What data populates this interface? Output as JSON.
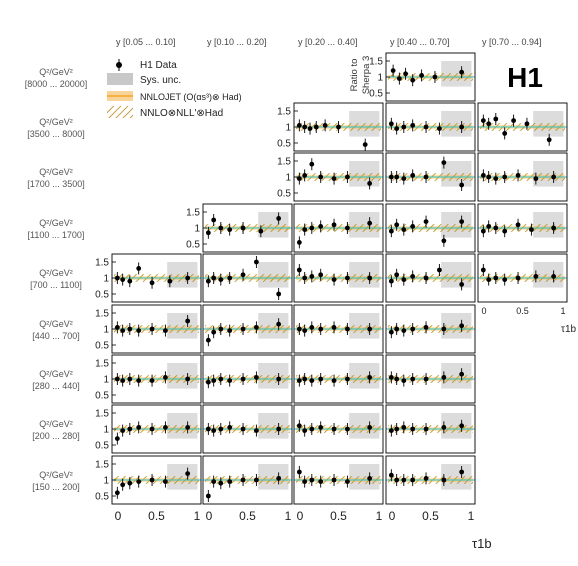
{
  "chart_data": {
    "type": "scatter",
    "logo": "H1",
    "ratio_label": [
      "Ratio to",
      "Sherpa 3"
    ],
    "x_axis_label": "τ1b",
    "x_ticks": [
      "0",
      "0.5",
      "1"
    ],
    "y_ticks": [
      "0.5",
      "1",
      "1.5"
    ],
    "xlim": [
      0,
      1
    ],
    "ylim": [
      0.25,
      1.75
    ],
    "legend": [
      {
        "name": "H1 Data",
        "marker": "point",
        "color": "#000000"
      },
      {
        "name": "Sys. unc.",
        "marker": "box",
        "color": "#c8c8c8"
      },
      {
        "name": "NNLOJET (O(αs³)⊗ Had)",
        "marker": "band",
        "color": "#f5a623"
      },
      {
        "name": "NNLO⊗NLL'⊗Had",
        "marker": "hatch",
        "color": "#b8860b"
      }
    ],
    "columns": [
      "y  [0.05 ... 0.10]",
      "y  [0.10 ... 0.20]",
      "y  [0.20 ... 0.40]",
      "y  [0.40 ... 0.70]",
      "y  [0.70 ... 0.94]"
    ],
    "rows": [
      {
        "q2": "Q²/GeV²",
        "range": "[8000 ... 20000]",
        "cols": [
          3
        ]
      },
      {
        "q2": "Q²/GeV²",
        "range": "[3500 ... 8000]",
        "cols": [
          2,
          3,
          4
        ]
      },
      {
        "q2": "Q²/GeV²",
        "range": "[1700 ... 3500]",
        "cols": [
          2,
          3,
          4
        ]
      },
      {
        "q2": "Q²/GeV²",
        "range": "[1100 ... 1700]",
        "cols": [
          1,
          2,
          3,
          4
        ]
      },
      {
        "q2": "Q²/GeV²",
        "range": "[700 ... 1100]",
        "cols": [
          0,
          1,
          2,
          3,
          4
        ]
      },
      {
        "q2": "Q²/GeV²",
        "range": "[440 ... 700]",
        "cols": [
          0,
          1,
          2,
          3
        ]
      },
      {
        "q2": "Q²/GeV²",
        "range": "[280 ... 440]",
        "cols": [
          0,
          1,
          2,
          3
        ]
      },
      {
        "q2": "Q²/GeV²",
        "range": "[200 ... 280]",
        "cols": [
          0,
          1,
          2,
          3
        ]
      },
      {
        "q2": "Q²/GeV²",
        "range": "[150 ... 200]",
        "cols": [
          0,
          1,
          2,
          3
        ]
      }
    ],
    "panel_points": {
      "0-3": [
        [
          0.08,
          1.2
        ],
        [
          0.15,
          0.95
        ],
        [
          0.22,
          1.1
        ],
        [
          0.3,
          0.9
        ],
        [
          0.4,
          1.05
        ],
        [
          0.55,
          1.0
        ],
        [
          0.85,
          1.15
        ]
      ],
      "1-2": [
        [
          0.06,
          1.05
        ],
        [
          0.12,
          1.0
        ],
        [
          0.18,
          0.95
        ],
        [
          0.25,
          1.0
        ],
        [
          0.35,
          1.05
        ],
        [
          0.5,
          1.0
        ],
        [
          0.8,
          0.45
        ]
      ],
      "1-3": [
        [
          0.06,
          1.1
        ],
        [
          0.12,
          0.95
        ],
        [
          0.2,
          1.0
        ],
        [
          0.3,
          1.05
        ],
        [
          0.45,
          1.0
        ],
        [
          0.6,
          0.95
        ],
        [
          0.85,
          1.0
        ]
      ],
      "1-4": [
        [
          0.06,
          1.2
        ],
        [
          0.12,
          1.1
        ],
        [
          0.2,
          1.25
        ],
        [
          0.3,
          0.8
        ],
        [
          0.4,
          1.2
        ],
        [
          0.55,
          1.1
        ],
        [
          0.8,
          0.6
        ]
      ],
      "2-2": [
        [
          0.06,
          0.95
        ],
        [
          0.12,
          1.05
        ],
        [
          0.2,
          1.4
        ],
        [
          0.3,
          1.0
        ],
        [
          0.45,
          0.95
        ],
        [
          0.6,
          1.0
        ],
        [
          0.85,
          0.8
        ]
      ],
      "2-3": [
        [
          0.06,
          1.0
        ],
        [
          0.12,
          1.0
        ],
        [
          0.2,
          0.95
        ],
        [
          0.3,
          1.05
        ],
        [
          0.45,
          1.0
        ],
        [
          0.65,
          1.45
        ],
        [
          0.85,
          0.75
        ]
      ],
      "2-4": [
        [
          0.06,
          1.05
        ],
        [
          0.12,
          1.0
        ],
        [
          0.2,
          0.95
        ],
        [
          0.3,
          1.0
        ],
        [
          0.45,
          1.05
        ],
        [
          0.65,
          0.95
        ],
        [
          0.85,
          1.0
        ]
      ],
      "3-1": [
        [
          0.06,
          0.85
        ],
        [
          0.12,
          1.25
        ],
        [
          0.2,
          1.0
        ],
        [
          0.3,
          0.95
        ],
        [
          0.45,
          1.0
        ],
        [
          0.65,
          0.9
        ],
        [
          0.85,
          1.3
        ]
      ],
      "3-2": [
        [
          0.06,
          0.55
        ],
        [
          0.12,
          0.95
        ],
        [
          0.2,
          1.0
        ],
        [
          0.3,
          1.05
        ],
        [
          0.45,
          1.1
        ],
        [
          0.6,
          1.0
        ],
        [
          0.85,
          1.15
        ]
      ],
      "3-3": [
        [
          0.06,
          0.9
        ],
        [
          0.12,
          1.1
        ],
        [
          0.2,
          0.95
        ],
        [
          0.3,
          1.05
        ],
        [
          0.45,
          1.2
        ],
        [
          0.65,
          0.6
        ],
        [
          0.85,
          1.2
        ]
      ],
      "3-4": [
        [
          0.06,
          0.9
        ],
        [
          0.12,
          1.05
        ],
        [
          0.2,
          1.0
        ],
        [
          0.3,
          0.9
        ],
        [
          0.45,
          1.1
        ],
        [
          0.6,
          0.95
        ],
        [
          0.85,
          1.0
        ]
      ],
      "4-0": [
        [
          0.06,
          1.0
        ],
        [
          0.12,
          0.95
        ],
        [
          0.2,
          0.9
        ],
        [
          0.3,
          1.3
        ],
        [
          0.45,
          0.85
        ],
        [
          0.65,
          0.9
        ],
        [
          0.85,
          1.0
        ]
      ],
      "4-1": [
        [
          0.06,
          0.9
        ],
        [
          0.12,
          1.0
        ],
        [
          0.2,
          0.95
        ],
        [
          0.3,
          1.0
        ],
        [
          0.45,
          1.1
        ],
        [
          0.6,
          1.5
        ],
        [
          0.85,
          0.5
        ]
      ],
      "4-2": [
        [
          0.06,
          1.25
        ],
        [
          0.12,
          1.0
        ],
        [
          0.2,
          1.05
        ],
        [
          0.3,
          1.1
        ],
        [
          0.45,
          0.95
        ],
        [
          0.6,
          1.0
        ],
        [
          0.85,
          1.0
        ]
      ],
      "4-3": [
        [
          0.06,
          0.9
        ],
        [
          0.12,
          1.1
        ],
        [
          0.2,
          0.95
        ],
        [
          0.3,
          1.05
        ],
        [
          0.45,
          1.0
        ],
        [
          0.6,
          1.25
        ],
        [
          0.85,
          0.8
        ]
      ],
      "4-4": [
        [
          0.06,
          1.25
        ],
        [
          0.12,
          0.95
        ],
        [
          0.2,
          1.0
        ],
        [
          0.3,
          0.95
        ],
        [
          0.45,
          1.0
        ],
        [
          0.65,
          1.05
        ],
        [
          0.85,
          1.05
        ]
      ],
      "5-0": [
        [
          0.06,
          1.05
        ],
        [
          0.12,
          0.95
        ],
        [
          0.2,
          1.0
        ],
        [
          0.3,
          0.95
        ],
        [
          0.45,
          1.0
        ],
        [
          0.6,
          0.95
        ],
        [
          0.85,
          1.25
        ]
      ],
      "5-1": [
        [
          0.06,
          0.65
        ],
        [
          0.12,
          0.9
        ],
        [
          0.2,
          1.0
        ],
        [
          0.3,
          0.95
        ],
        [
          0.45,
          1.0
        ],
        [
          0.6,
          1.05
        ],
        [
          0.85,
          1.15
        ]
      ],
      "5-2": [
        [
          0.06,
          1.0
        ],
        [
          0.12,
          0.95
        ],
        [
          0.2,
          1.05
        ],
        [
          0.3,
          1.0
        ],
        [
          0.45,
          1.05
        ],
        [
          0.6,
          1.0
        ],
        [
          0.85,
          1.0
        ]
      ],
      "5-3": [
        [
          0.06,
          0.9
        ],
        [
          0.12,
          1.0
        ],
        [
          0.2,
          0.95
        ],
        [
          0.3,
          1.0
        ],
        [
          0.45,
          1.05
        ],
        [
          0.65,
          1.0
        ],
        [
          0.85,
          1.1
        ]
      ],
      "6-0": [
        [
          0.06,
          1.0
        ],
        [
          0.12,
          0.95
        ],
        [
          0.2,
          1.0
        ],
        [
          0.3,
          0.95
        ],
        [
          0.45,
          0.95
        ],
        [
          0.6,
          1.05
        ],
        [
          0.85,
          1.0
        ]
      ],
      "6-1": [
        [
          0.06,
          0.9
        ],
        [
          0.12,
          0.95
        ],
        [
          0.2,
          1.0
        ],
        [
          0.3,
          0.95
        ],
        [
          0.45,
          1.0
        ],
        [
          0.6,
          1.05
        ],
        [
          0.85,
          1.0
        ]
      ],
      "6-2": [
        [
          0.06,
          0.95
        ],
        [
          0.12,
          1.0
        ],
        [
          0.2,
          0.95
        ],
        [
          0.3,
          1.0
        ],
        [
          0.45,
          0.95
        ],
        [
          0.6,
          1.0
        ],
        [
          0.85,
          1.05
        ]
      ],
      "6-3": [
        [
          0.06,
          1.05
        ],
        [
          0.12,
          1.0
        ],
        [
          0.2,
          0.95
        ],
        [
          0.3,
          1.0
        ],
        [
          0.45,
          1.0
        ],
        [
          0.65,
          1.05
        ],
        [
          0.85,
          1.15
        ]
      ],
      "7-0": [
        [
          0.06,
          0.7
        ],
        [
          0.12,
          0.95
        ],
        [
          0.2,
          1.0
        ],
        [
          0.3,
          1.05
        ],
        [
          0.45,
          1.0
        ],
        [
          0.6,
          1.05
        ],
        [
          0.85,
          1.05
        ]
      ],
      "7-1": [
        [
          0.06,
          1.0
        ],
        [
          0.12,
          0.95
        ],
        [
          0.2,
          1.0
        ],
        [
          0.3,
          1.05
        ],
        [
          0.45,
          1.0
        ],
        [
          0.6,
          0.95
        ],
        [
          0.85,
          1.0
        ]
      ],
      "7-2": [
        [
          0.06,
          1.1
        ],
        [
          0.12,
          0.95
        ],
        [
          0.2,
          1.0
        ],
        [
          0.3,
          1.05
        ],
        [
          0.45,
          1.0
        ],
        [
          0.6,
          1.0
        ],
        [
          0.85,
          1.05
        ]
      ],
      "7-3": [
        [
          0.06,
          0.95
        ],
        [
          0.12,
          1.0
        ],
        [
          0.2,
          1.05
        ],
        [
          0.3,
          1.0
        ],
        [
          0.45,
          1.0
        ],
        [
          0.65,
          1.05
        ],
        [
          0.85,
          1.1
        ]
      ],
      "8-0": [
        [
          0.06,
          0.6
        ],
        [
          0.12,
          0.85
        ],
        [
          0.2,
          0.9
        ],
        [
          0.3,
          0.95
        ],
        [
          0.45,
          1.0
        ],
        [
          0.6,
          0.95
        ],
        [
          0.85,
          1.2
        ]
      ],
      "8-1": [
        [
          0.06,
          0.5
        ],
        [
          0.12,
          0.95
        ],
        [
          0.2,
          0.9
        ],
        [
          0.3,
          0.95
        ],
        [
          0.45,
          1.0
        ],
        [
          0.6,
          1.0
        ],
        [
          0.85,
          1.05
        ]
      ],
      "8-2": [
        [
          0.06,
          1.25
        ],
        [
          0.12,
          0.95
        ],
        [
          0.2,
          1.0
        ],
        [
          0.3,
          0.95
        ],
        [
          0.45,
          1.0
        ],
        [
          0.6,
          0.95
        ],
        [
          0.85,
          1.05
        ]
      ],
      "8-3": [
        [
          0.06,
          1.15
        ],
        [
          0.12,
          1.0
        ],
        [
          0.2,
          1.0
        ],
        [
          0.3,
          1.0
        ],
        [
          0.45,
          1.05
        ],
        [
          0.65,
          1.0
        ],
        [
          0.85,
          1.25
        ]
      ]
    }
  }
}
